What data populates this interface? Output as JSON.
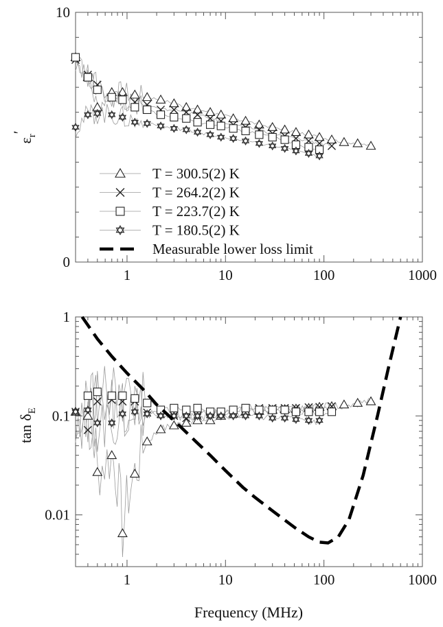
{
  "chart_data": [
    {
      "id": "eps",
      "type": "scatter",
      "xlabel": "",
      "ylabel": "ε",
      "ylabel_sub": "r",
      "ylabel_prime": "′",
      "xscale": "log",
      "yscale": "linear",
      "xlim": [
        0.3,
        1000
      ],
      "ylim": [
        0,
        10
      ],
      "xticks": [
        1,
        10,
        100,
        1000
      ],
      "xtick_labels": [
        "1",
        "10",
        "100",
        "1000"
      ],
      "yticks": [
        0,
        10
      ],
      "ytick_labels": [
        "0",
        "10"
      ],
      "legend_position": "bottom-left",
      "series": [
        {
          "name": "T = 300.5(2) K",
          "marker": "triangle",
          "x": [
            0.3,
            0.4,
            0.5,
            0.7,
            0.9,
            1.2,
            1.6,
            2.2,
            3,
            4,
            5.2,
            7,
            9,
            12,
            16,
            22,
            30,
            40,
            52,
            70,
            90,
            120,
            160,
            220,
            300
          ],
          "y": [
            8.2,
            7.4,
            6.2,
            6.8,
            6.8,
            6.7,
            6.6,
            6.5,
            6.35,
            6.2,
            6.1,
            6.0,
            5.9,
            5.75,
            5.65,
            5.5,
            5.4,
            5.3,
            5.2,
            5.1,
            5.0,
            4.9,
            4.8,
            4.75,
            4.65
          ]
        },
        {
          "name": "T = 264.2(2) K",
          "marker": "x",
          "x": [
            0.3,
            0.4,
            0.5,
            0.7,
            0.9,
            1.2,
            1.6,
            2.2,
            3,
            4,
            5.2,
            7,
            9,
            12,
            16,
            22,
            30,
            40,
            52,
            70,
            90,
            120
          ],
          "y": [
            8.1,
            7.5,
            7.1,
            6.6,
            6.6,
            6.4,
            6.3,
            6.1,
            6.1,
            6.0,
            5.9,
            5.75,
            5.65,
            5.5,
            5.4,
            5.3,
            5.15,
            5.05,
            4.95,
            4.85,
            4.75,
            4.65
          ]
        },
        {
          "name": "T = 223.7(2) K",
          "marker": "square",
          "x": [
            0.3,
            0.4,
            0.5,
            0.7,
            0.9,
            1.2,
            1.6,
            2.2,
            3,
            4,
            5.2,
            7,
            9,
            12,
            16,
            22,
            30,
            40,
            52,
            70,
            90
          ],
          "y": [
            8.2,
            7.4,
            6.9,
            6.6,
            6.5,
            6.2,
            6.1,
            5.9,
            5.8,
            5.75,
            5.6,
            5.5,
            5.45,
            5.35,
            5.25,
            5.1,
            5.0,
            4.9,
            4.7,
            4.6,
            4.5
          ]
        },
        {
          "name": "T = 180.5(2) K",
          "marker": "star",
          "x": [
            0.3,
            0.4,
            0.5,
            0.7,
            0.9,
            1.2,
            1.6,
            2.2,
            3,
            4,
            5.2,
            7,
            9,
            12,
            16,
            22,
            30,
            40,
            52,
            70,
            90
          ],
          "y": [
            5.4,
            5.9,
            5.95,
            5.9,
            5.8,
            5.6,
            5.55,
            5.45,
            5.35,
            5.3,
            5.2,
            5.1,
            5.0,
            4.95,
            4.85,
            4.75,
            4.65,
            4.55,
            4.45,
            4.35,
            4.25
          ]
        }
      ],
      "extra_legend": {
        "name": "Measurable lower loss limit",
        "style": "dashed-thick"
      }
    },
    {
      "id": "tan",
      "type": "scatter",
      "xlabel": "Frequency (MHz)",
      "ylabel": "tan δ",
      "ylabel_sub": "E",
      "xscale": "log",
      "yscale": "log",
      "xlim": [
        0.3,
        1000
      ],
      "ylim": [
        0.003,
        1
      ],
      "xticks": [
        1,
        10,
        100,
        1000
      ],
      "xtick_labels": [
        "1",
        "10",
        "100",
        "1000"
      ],
      "yticks": [
        0.01,
        0.1,
        1
      ],
      "ytick_labels": [
        "0.01",
        "0.1",
        "1"
      ],
      "series": [
        {
          "name": "T = 300.5(2) K",
          "marker": "triangle",
          "x": [
            0.3,
            0.4,
            0.5,
            0.7,
            0.9,
            1.2,
            1.6,
            2.2,
            3,
            4,
            5.2,
            7,
            9,
            12,
            16,
            22,
            30,
            40,
            52,
            70,
            90,
            120,
            160,
            220,
            300
          ],
          "y": [
            0.11,
            0.1,
            0.027,
            0.04,
            0.0065,
            0.026,
            0.055,
            0.073,
            0.08,
            0.085,
            0.09,
            0.09,
            0.1,
            0.105,
            0.11,
            0.112,
            0.115,
            0.117,
            0.118,
            0.12,
            0.123,
            0.125,
            0.13,
            0.135,
            0.14
          ]
        },
        {
          "name": "T = 264.2(2) K",
          "marker": "x",
          "x": [
            0.3,
            0.4,
            0.5,
            0.7,
            0.9,
            1.2,
            1.6,
            2.2,
            3,
            4,
            5.2,
            7,
            9,
            12,
            16,
            22,
            30,
            40,
            52,
            70,
            90,
            120
          ],
          "y": [
            0.11,
            0.072,
            0.14,
            0.145,
            0.14,
            0.14,
            0.108,
            0.105,
            0.1,
            0.095,
            0.1,
            0.105,
            0.11,
            0.115,
            0.118,
            0.12,
            0.12,
            0.12,
            0.12,
            0.122,
            0.123,
            0.125
          ]
        },
        {
          "name": "T = 223.7(2) K",
          "marker": "square",
          "x": [
            0.4,
            0.5,
            0.7,
            0.9,
            1.2,
            1.6,
            2.2,
            3,
            4,
            5.2,
            7,
            9,
            12,
            16,
            22,
            30,
            40,
            52,
            70,
            90,
            120
          ],
          "y": [
            0.16,
            0.175,
            0.16,
            0.16,
            0.15,
            0.135,
            0.115,
            0.12,
            0.115,
            0.12,
            0.11,
            0.11,
            0.115,
            0.12,
            0.115,
            0.115,
            0.115,
            0.11,
            0.11,
            0.11,
            0.11
          ]
        },
        {
          "name": "T = 180.5(2) K",
          "marker": "star",
          "x": [
            0.3,
            0.4,
            0.5,
            0.7,
            0.9,
            1.2,
            1.6,
            2.2,
            3,
            4,
            5.2,
            7,
            9,
            12,
            16,
            22,
            30,
            40,
            52,
            70,
            90
          ],
          "y": [
            0.11,
            0.115,
            0.085,
            0.085,
            0.105,
            0.11,
            0.105,
            0.1,
            0.1,
            0.1,
            0.1,
            0.1,
            0.1,
            0.1,
            0.1,
            0.1,
            0.095,
            0.095,
            0.092,
            0.09,
            0.09
          ]
        },
        {
          "name": "Measurable lower loss limit",
          "marker": "none",
          "style": "dashed-thick",
          "x": [
            0.35,
            0.5,
            0.7,
            1,
            1.5,
            2,
            3,
            5,
            7,
            10,
            15,
            20,
            30,
            50,
            70,
            90,
            110,
            140,
            180,
            250,
            350,
            450,
            600
          ],
          "y": [
            1,
            0.6,
            0.4,
            0.27,
            0.18,
            0.13,
            0.09,
            0.055,
            0.04,
            0.028,
            0.019,
            0.015,
            0.011,
            0.0075,
            0.006,
            0.0053,
            0.0052,
            0.006,
            0.009,
            0.025,
            0.1,
            0.3,
            1
          ]
        }
      ]
    }
  ]
}
